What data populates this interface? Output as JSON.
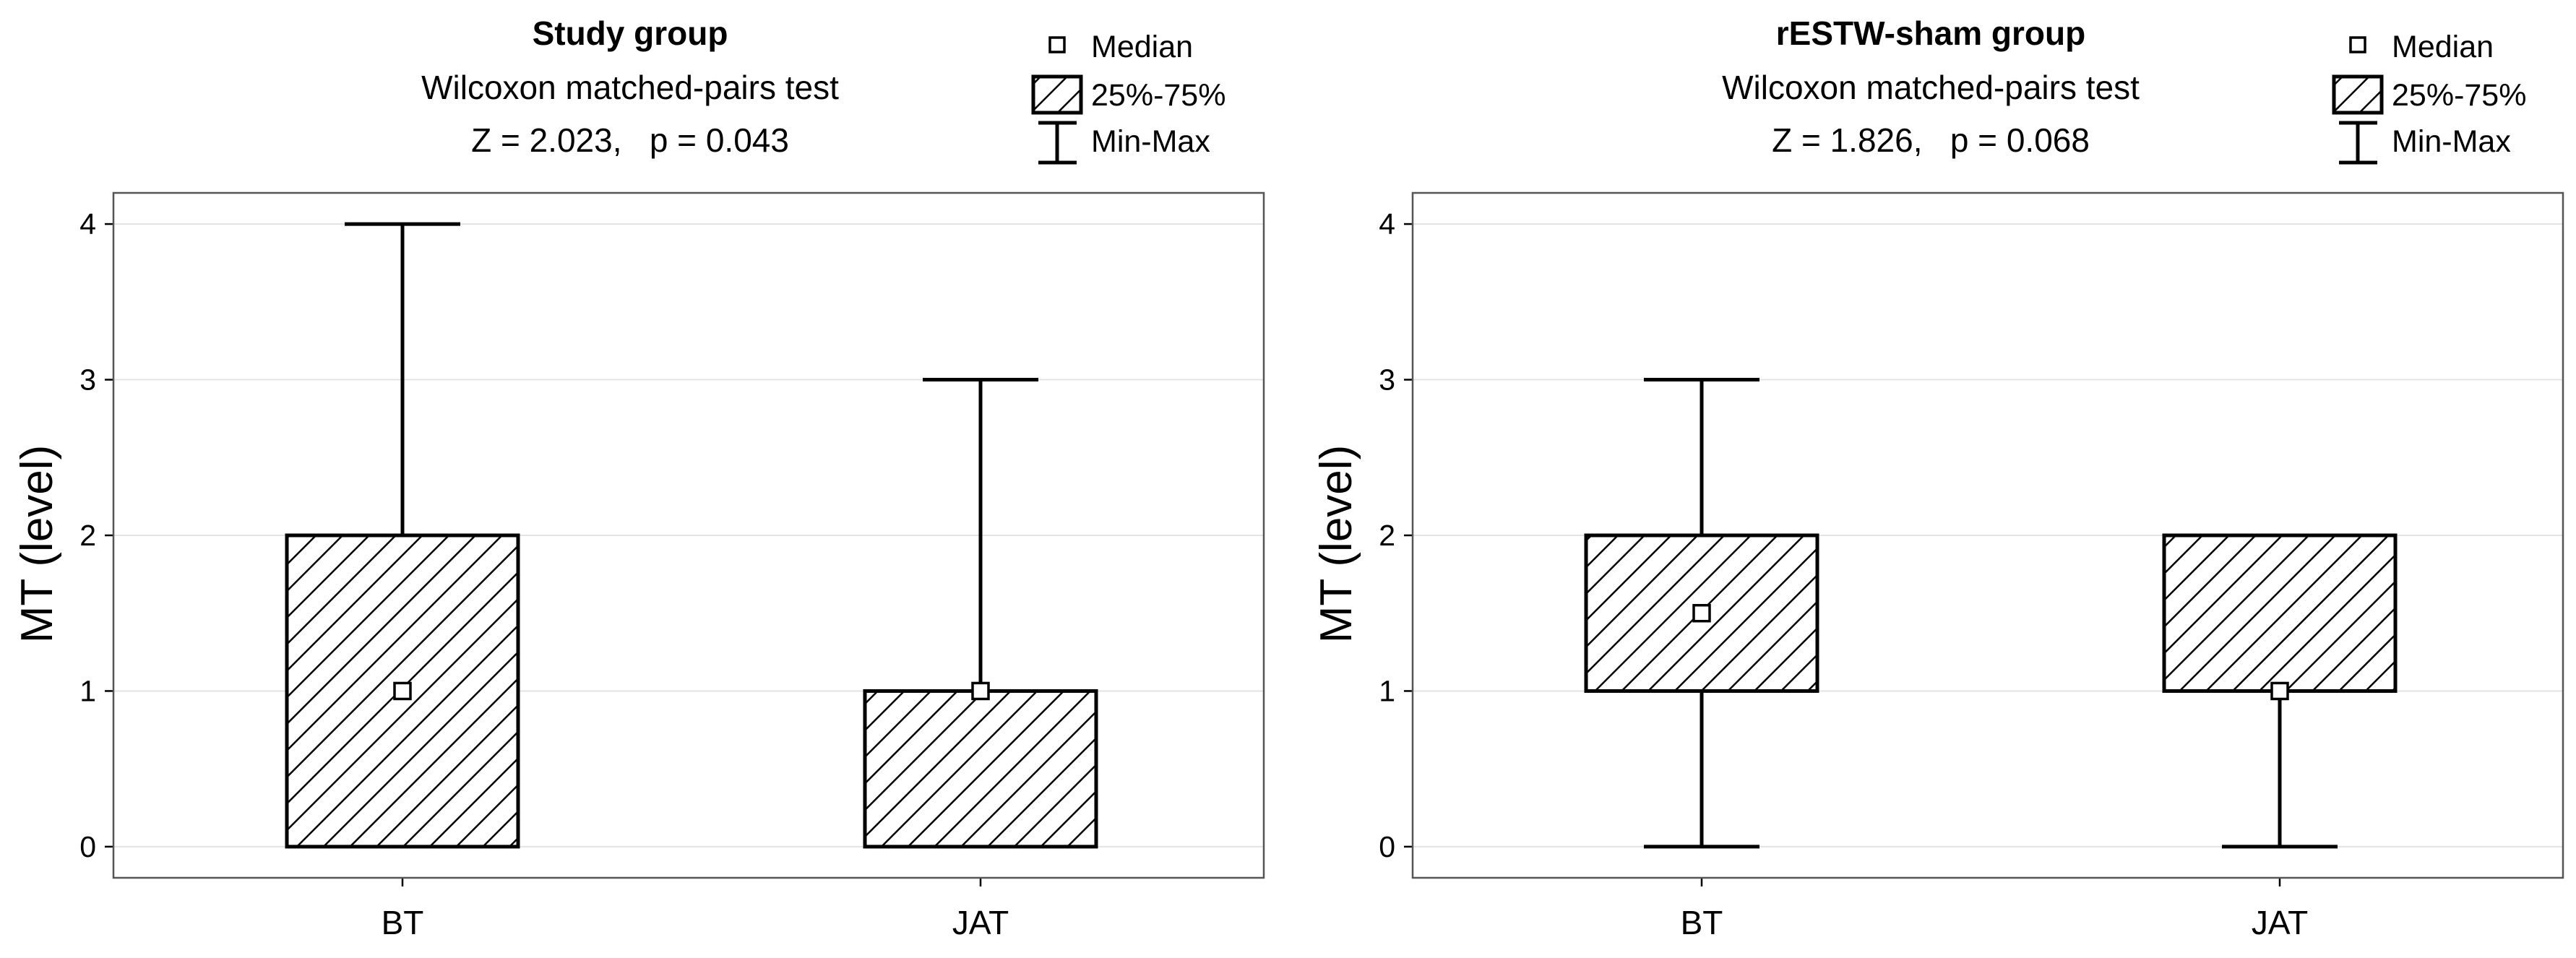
{
  "legend": {
    "median": "Median",
    "iqr": "25%-75%",
    "range": "Min-Max"
  },
  "chart_data": [
    {
      "type": "boxplot",
      "title": "Study group",
      "subtitle": "Wilcoxon matched-pairs test",
      "stat": "Z = 2.023,   p = 0.043",
      "ylabel": "MT (level)",
      "ylim": [
        -0.2,
        4.2
      ],
      "yticks": [
        "0",
        "1",
        "2",
        "3",
        "4"
      ],
      "categories": [
        "BT",
        "JAT"
      ],
      "boxes": [
        {
          "min": 0,
          "q1": 0,
          "median": 1,
          "q3": 2,
          "max": 4
        },
        {
          "min": 0,
          "q1": 0,
          "median": 1,
          "q3": 1,
          "max": 3
        }
      ]
    },
    {
      "type": "boxplot",
      "title": "rESTW-sham group",
      "subtitle": "Wilcoxon matched-pairs test",
      "stat": "Z = 1.826,   p = 0.068",
      "ylabel": "MT (level)",
      "ylim": [
        -0.2,
        4.2
      ],
      "yticks": [
        "0",
        "1",
        "2",
        "3",
        "4"
      ],
      "categories": [
        "BT",
        "JAT"
      ],
      "boxes": [
        {
          "min": 0,
          "q1": 1,
          "median": 1.5,
          "q3": 2,
          "max": 3
        },
        {
          "min": 0,
          "q1": 1,
          "median": 1,
          "q3": 2,
          "max": 2
        }
      ]
    }
  ]
}
